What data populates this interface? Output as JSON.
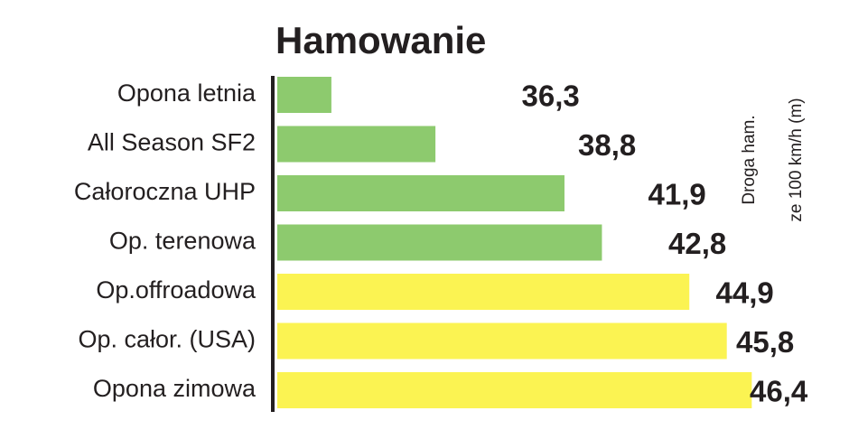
{
  "chart_data": {
    "type": "hbar",
    "title": "Hamowanie",
    "categories": [
      "Opona letnia",
      "All Season SF2",
      "Całoroczna UHP",
      "Op. terenowa",
      "Op.offroadowa",
      "Op. całor. (USA)",
      "Opona zimowa"
    ],
    "values": [
      36.3,
      38.8,
      41.9,
      42.8,
      44.9,
      45.8,
      46.4
    ],
    "value_labels": [
      "36,3",
      "38,8",
      "41,9",
      "42,8",
      "44,9",
      "45,8",
      "46,4"
    ],
    "colors": [
      "#8dca6e",
      "#8dca6e",
      "#8dca6e",
      "#8dca6e",
      "#fbf352",
      "#fbf352",
      "#fbf352"
    ],
    "xlabel": [
      "Droga ham.",
      "ze 100 km/h (m)"
    ],
    "xlim": [
      35,
      47
    ]
  }
}
